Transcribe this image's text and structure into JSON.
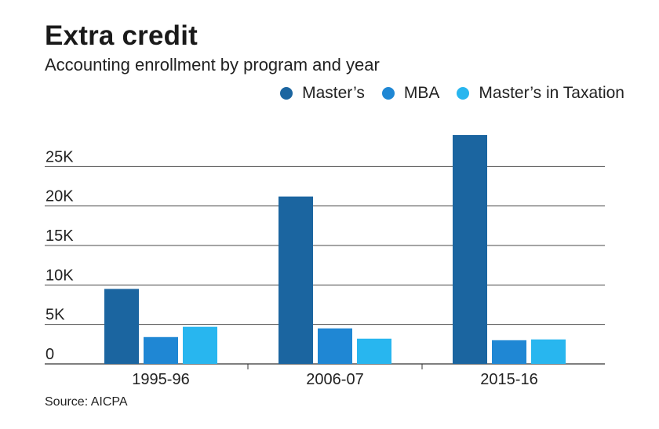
{
  "chart_data": {
    "type": "bar",
    "title": "Extra credit",
    "subtitle": "Accounting enrollment by program and year",
    "categories": [
      "1995-96",
      "2006-07",
      "2015-16"
    ],
    "series": [
      {
        "name": "Master’s",
        "color": "#1b65a0",
        "values": [
          9500,
          21200,
          29000
        ]
      },
      {
        "name": "MBA",
        "color": "#1f87d4",
        "values": [
          3400,
          4500,
          3000
        ]
      },
      {
        "name": "Master’s in Taxation",
        "color": "#28b6ef",
        "values": [
          4700,
          3200,
          3100
        ]
      }
    ],
    "ylim": [
      0,
      30000
    ],
    "yticks": [
      0,
      5000,
      10000,
      15000,
      20000,
      25000
    ],
    "ytick_labels": [
      "0",
      "5K",
      "10K",
      "15K",
      "20K",
      "25K"
    ],
    "grid": true,
    "legend": "top-right",
    "source": "Source: AICPA"
  }
}
